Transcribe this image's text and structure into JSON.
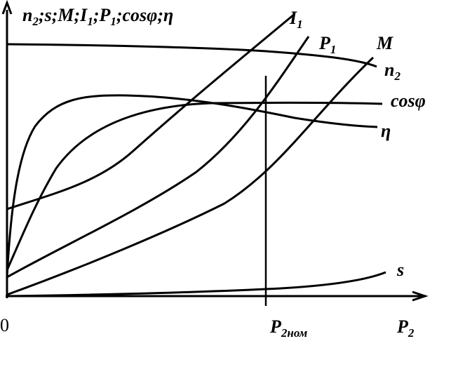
{
  "y_axis_label": [
    {
      "text": "n",
      "sub": "2"
    },
    {
      "text": ";s;M;I",
      "sub": "1"
    },
    {
      "text": ";P",
      "sub": "1"
    },
    {
      "text": ";cosφ;η"
    }
  ],
  "curves": [
    {
      "text": "I",
      "sub": "1"
    },
    {
      "text": "P",
      "sub": "1"
    },
    {
      "text": "M"
    },
    {
      "text": "n",
      "sub": "2"
    },
    {
      "text": "cosφ"
    },
    {
      "text": "η"
    },
    {
      "text": "s"
    }
  ],
  "x_axis": {
    "origin": "0",
    "nominal": {
      "text": "P",
      "sub": "2ном"
    },
    "label": {
      "text": "P",
      "sub": "2"
    }
  }
}
